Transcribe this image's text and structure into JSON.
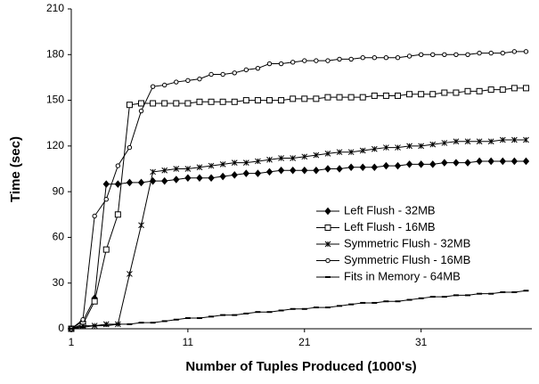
{
  "chart_data": {
    "type": "line",
    "x_label": "Number of Tuples Produced (1000's)",
    "y_label": "Time (sec)",
    "x": [
      1,
      2,
      3,
      4,
      5,
      6,
      7,
      8,
      9,
      10,
      11,
      12,
      13,
      14,
      15,
      16,
      17,
      18,
      19,
      20,
      21,
      22,
      23,
      24,
      25,
      26,
      27,
      28,
      29,
      30,
      31,
      32,
      33,
      34,
      35,
      36,
      37,
      38,
      39,
      40
    ],
    "series": [
      {
        "name": "Left Flush - 32MB",
        "color": "#000000",
        "marker": "diamond",
        "values": [
          0,
          5,
          20,
          95,
          95,
          96,
          96,
          97,
          97,
          98,
          99,
          99,
          99,
          100,
          101,
          102,
          102,
          103,
          104,
          104,
          104,
          104,
          105,
          105,
          106,
          106,
          106,
          107,
          107,
          108,
          108,
          108,
          109,
          109,
          109,
          110,
          110,
          110,
          110,
          110
        ]
      },
      {
        "name": "Left Flush - 16MB",
        "color": "#000000",
        "marker": "square",
        "values": [
          0,
          3,
          18,
          52,
          75,
          147,
          148,
          148,
          148,
          148,
          148,
          149,
          149,
          149,
          149,
          150,
          150,
          150,
          150,
          151,
          151,
          151,
          152,
          152,
          152,
          152,
          153,
          153,
          153,
          154,
          154,
          154,
          155,
          155,
          156,
          156,
          157,
          157,
          158,
          158
        ]
      },
      {
        "name": "Symmetric Flush - 32MB",
        "color": "#000000",
        "marker": "star",
        "values": [
          0,
          2,
          2,
          3,
          3,
          36,
          68,
          103,
          104,
          105,
          105,
          106,
          107,
          108,
          109,
          109,
          110,
          111,
          112,
          112,
          113,
          114,
          115,
          116,
          116,
          117,
          118,
          119,
          119,
          120,
          120,
          121,
          122,
          123,
          123,
          123,
          123,
          124,
          124,
          124
        ]
      },
      {
        "name": "Symmetric Flush - 16MB",
        "color": "#000000",
        "marker": "circle",
        "values": [
          0,
          6,
          74,
          85,
          107,
          119,
          143,
          159,
          160,
          162,
          163,
          164,
          167,
          167,
          168,
          170,
          171,
          174,
          174,
          175,
          176,
          176,
          176,
          177,
          177,
          178,
          178,
          178,
          178,
          179,
          180,
          180,
          180,
          180,
          180,
          181,
          181,
          181,
          182,
          182
        ]
      },
      {
        "name": "Fits in Memory - 64MB",
        "color": "#000000",
        "marker": "dash",
        "values": [
          0,
          1,
          2,
          2,
          3,
          3,
          4,
          4,
          5,
          6,
          7,
          7,
          8,
          9,
          9,
          10,
          11,
          11,
          12,
          13,
          13,
          14,
          14,
          15,
          16,
          17,
          17,
          18,
          18,
          19,
          20,
          21,
          21,
          22,
          22,
          23,
          23,
          24,
          24,
          25
        ]
      }
    ],
    "xlim": [
      1,
      40.5
    ],
    "xticks": [
      1,
      11,
      21,
      31
    ],
    "ylim": [
      0,
      210
    ],
    "yticks": [
      0,
      30,
      60,
      90,
      120,
      150,
      180,
      210
    ],
    "grid": false,
    "legend": "right"
  }
}
